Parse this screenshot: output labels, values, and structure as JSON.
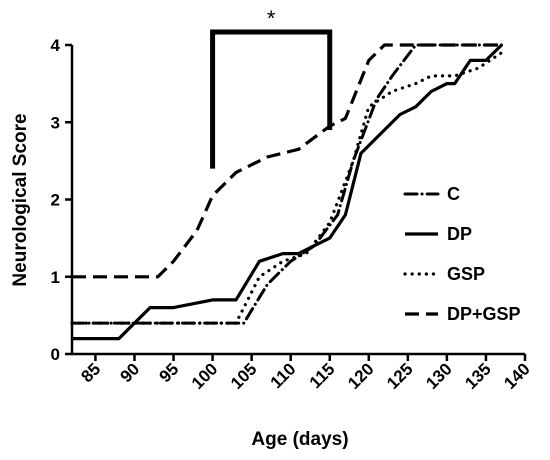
{
  "chart_data": {
    "type": "line",
    "title": "",
    "xlabel": "Age (days)",
    "ylabel": "Neurological Score",
    "xlim": [
      82,
      140
    ],
    "ylim": [
      0,
      4
    ],
    "xticks": [
      85,
      90,
      95,
      100,
      105,
      110,
      115,
      120,
      125,
      130,
      135,
      140
    ],
    "yticks": [
      0,
      1,
      2,
      3,
      4
    ],
    "grid": false,
    "legend_position": "right",
    "series": [
      {
        "name": "C",
        "style": "dash-dot",
        "x": [
          82,
          104,
          107,
          110,
          113,
          116,
          118,
          121,
          123,
          126,
          129,
          131,
          134,
          137
        ],
        "y": [
          0.4,
          0.4,
          0.9,
          1.2,
          1.4,
          1.8,
          2.5,
          3.3,
          3.6,
          4.0,
          4.0,
          4.0,
          4.0,
          4.0
        ]
      },
      {
        "name": "DP",
        "style": "solid",
        "x": [
          82,
          88,
          92,
          95,
          100,
          103,
          106,
          109,
          111,
          115,
          117,
          119,
          122,
          124,
          126,
          128,
          130,
          131,
          133,
          135,
          137
        ],
        "y": [
          0.2,
          0.2,
          0.6,
          0.6,
          0.7,
          0.7,
          1.2,
          1.3,
          1.3,
          1.5,
          1.8,
          2.6,
          2.9,
          3.1,
          3.2,
          3.4,
          3.5,
          3.5,
          3.8,
          3.8,
          4.0
        ]
      },
      {
        "name": "GSP",
        "style": "dotted",
        "x": [
          82,
          103,
          106,
          109,
          112,
          115,
          118,
          120,
          123,
          126,
          128,
          131,
          134,
          137
        ],
        "y": [
          0.4,
          0.4,
          1.0,
          1.2,
          1.3,
          1.7,
          2.5,
          3.2,
          3.4,
          3.5,
          3.6,
          3.6,
          3.7,
          3.9
        ]
      },
      {
        "name": "DP+GSP",
        "style": "dashed",
        "x": [
          82,
          93,
          95,
          98,
          100,
          103,
          107,
          111,
          115,
          117,
          120,
          122,
          137
        ],
        "y": [
          1.0,
          1.0,
          1.2,
          1.6,
          2.05,
          2.35,
          2.55,
          2.65,
          2.95,
          3.05,
          3.8,
          4.0,
          4.0
        ]
      }
    ],
    "annotations": [
      {
        "type": "significance-bracket",
        "label": "*",
        "x_start": 100,
        "x_end": 115,
        "y_start": 2.4,
        "y_end": 2.9
      }
    ]
  }
}
